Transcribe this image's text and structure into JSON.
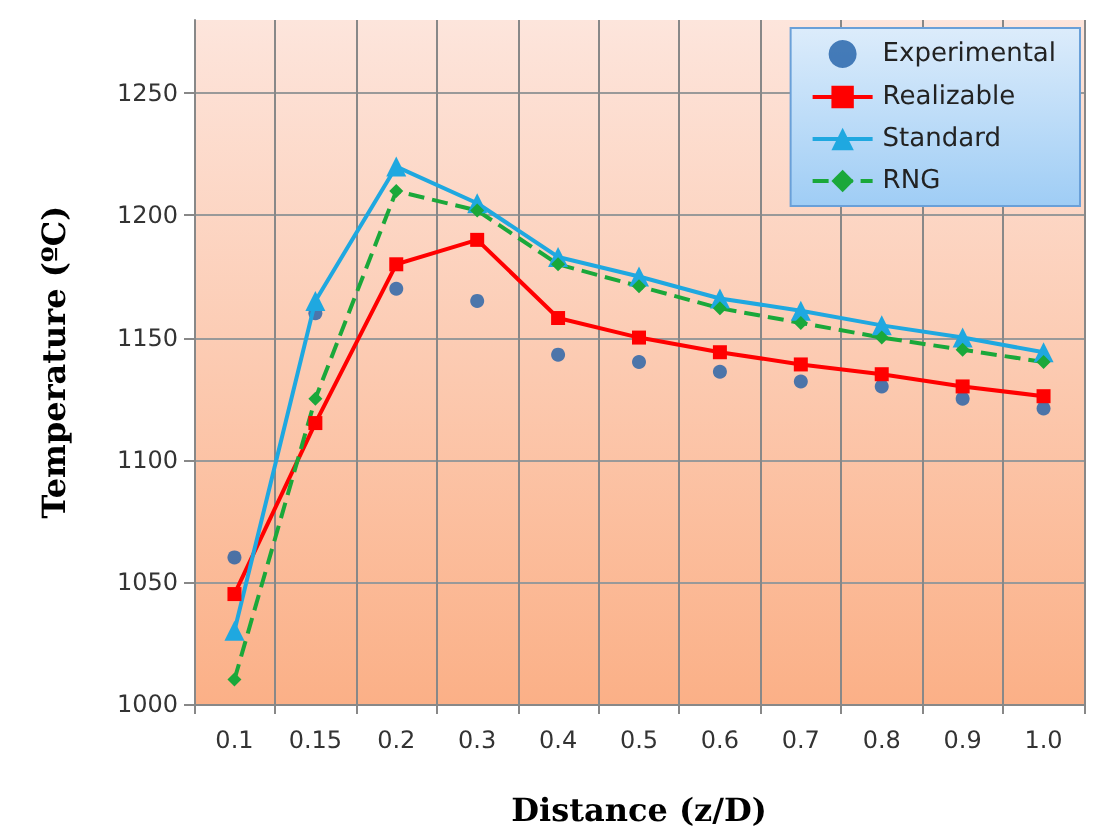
{
  "chart_data": {
    "type": "line",
    "xlabel": "Distance (z/D)",
    "ylabel": "Temperature (ºC)",
    "categories": [
      "0.1",
      "0.15",
      "0.2",
      "0.3",
      "0.4",
      "0.5",
      "0.6",
      "0.7",
      "0.8",
      "0.9",
      "1.0"
    ],
    "series": [
      {
        "name": "Experimental",
        "type": "scatter",
        "marker": "circle",
        "color": "#1f5fa8",
        "values": [
          1060,
          1160,
          1170,
          1165,
          1143,
          1140,
          1136,
          1132,
          1130,
          1125,
          1121
        ]
      },
      {
        "name": "Realizable",
        "marker": "square",
        "line_style": "solid",
        "color": "#ff0000",
        "values": [
          1045,
          1115,
          1180,
          1190,
          1158,
          1150,
          1144,
          1139,
          1135,
          1130,
          1126
        ]
      },
      {
        "name": "Standard",
        "marker": "triangle",
        "line_style": "solid",
        "color": "#1fa8e0",
        "values": [
          1030,
          1165,
          1220,
          1205,
          1183,
          1175,
          1166,
          1161,
          1155,
          1150,
          1144
        ]
      },
      {
        "name": "RNG",
        "marker": "diamond",
        "line_style": "dashed",
        "color": "#1aa83a",
        "values": [
          1010,
          1125,
          1210,
          1202,
          1180,
          1171,
          1162,
          1156,
          1150,
          1145,
          1140
        ]
      }
    ],
    "ylim": [
      1000,
      1280
    ],
    "yticks": [
      1000,
      1050,
      1100,
      1150,
      1200,
      1250
    ],
    "grid": true,
    "legend": "top right"
  }
}
